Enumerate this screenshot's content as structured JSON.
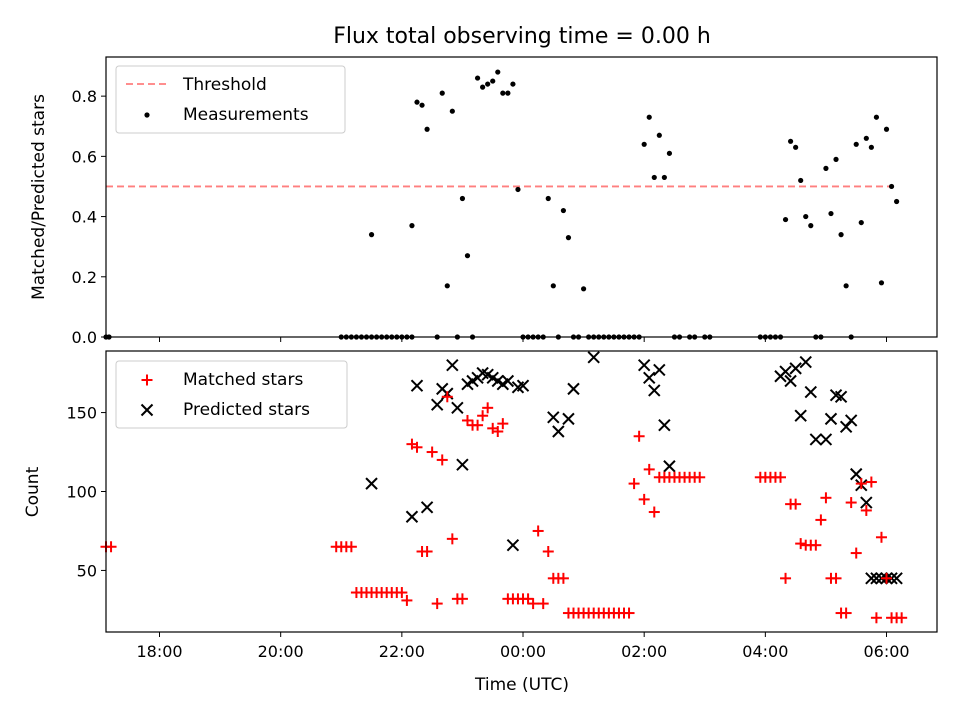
{
  "title": "Flux total observing time = 0.00 h",
  "xlabel": "Time (UTC)",
  "x_tick_labels": [
    "18:00",
    "20:00",
    "22:00",
    "00:00",
    "02:00",
    "04:00",
    "06:00"
  ],
  "colors": {
    "threshold": "#ff7f7f",
    "measurements": "#000000",
    "matched": "#ff0000",
    "predicted": "#000000"
  },
  "chart_data": [
    {
      "type": "scatter",
      "ylabel": "Matched/Predicted stars",
      "ylim": [
        0,
        0.93
      ],
      "xlim": [
        "17:07",
        "06:50"
      ],
      "yticks": [
        0.0,
        0.2,
        0.4,
        0.6,
        0.8
      ],
      "ytick_labels": [
        "0.0",
        "0.2",
        "0.4",
        "0.6",
        "0.8"
      ],
      "legend": {
        "position": "top-left",
        "entries": [
          "Threshold",
          "Measurements"
        ]
      },
      "threshold": {
        "name": "Threshold",
        "value": 0.5,
        "x_range": [
          "17:07",
          "06:10"
        ]
      },
      "series": [
        {
          "name": "Measurements",
          "x": [
            "17:07",
            "17:10",
            "21:00",
            "21:05",
            "21:10",
            "21:15",
            "21:20",
            "21:25",
            "21:30",
            "21:35",
            "21:40",
            "21:45",
            "21:50",
            "21:55",
            "22:00",
            "22:05",
            "22:10",
            "21:30",
            "22:10",
            "22:15",
            "22:20",
            "22:25",
            "22:35",
            "22:40",
            "22:45",
            "22:50",
            "22:55",
            "23:00",
            "23:05",
            "23:10",
            "23:15",
            "23:20",
            "23:25",
            "23:30",
            "23:35",
            "23:40",
            "23:45",
            "23:50",
            "23:55",
            "00:00",
            "00:05",
            "00:10",
            "00:15",
            "00:20",
            "00:25",
            "00:30",
            "00:35",
            "00:40",
            "00:45",
            "00:50",
            "00:55",
            "01:00",
            "01:05",
            "01:10",
            "01:15",
            "01:20",
            "01:25",
            "01:30",
            "01:35",
            "01:40",
            "01:45",
            "01:50",
            "01:55",
            "02:00",
            "02:05",
            "02:10",
            "02:15",
            "02:20",
            "02:25",
            "02:30",
            "02:35",
            "02:45",
            "02:50",
            "03:00",
            "03:05",
            "03:55",
            "04:00",
            "04:05",
            "04:10",
            "04:15",
            "04:20",
            "04:25",
            "04:30",
            "04:35",
            "04:40",
            "04:45",
            "04:50",
            "04:55",
            "05:00",
            "05:05",
            "05:10",
            "05:15",
            "05:20",
            "05:25",
            "05:30",
            "05:35",
            "05:40",
            "05:45",
            "05:50",
            "05:55",
            "06:00",
            "06:05",
            "06:10"
          ],
          "y": [
            0.0,
            0.0,
            0.0,
            0.0,
            0.0,
            0.0,
            0.0,
            0.0,
            0.0,
            0.0,
            0.0,
            0.0,
            0.0,
            0.0,
            0.0,
            0.0,
            0.37,
            0.34,
            0.0,
            0.78,
            0.77,
            0.69,
            0.0,
            0.81,
            0.17,
            0.75,
            0.0,
            0.46,
            0.27,
            0.0,
            0.86,
            0.83,
            0.84,
            0.85,
            0.88,
            0.81,
            0.81,
            0.84,
            0.49,
            0.0,
            0.0,
            0.0,
            0.0,
            0.0,
            0.46,
            0.17,
            0.0,
            0.42,
            0.33,
            0.0,
            0.0,
            0.16,
            0.0,
            0.0,
            0.0,
            0.0,
            0.0,
            0.0,
            0.0,
            0.0,
            0.0,
            0.0,
            0.0,
            0.64,
            0.73,
            0.53,
            0.67,
            0.53,
            0.61,
            0.0,
            0.0,
            0.0,
            0.0,
            0.0,
            0.0,
            0.0,
            0.0,
            0.0,
            0.0,
            0.0,
            0.39,
            0.65,
            0.63,
            0.52,
            0.4,
            0.37,
            0.0,
            0.0,
            0.56,
            0.41,
            0.59,
            0.34,
            0.17,
            0.0,
            0.64,
            0.38,
            0.66,
            0.63,
            0.73,
            0.18,
            0.69,
            0.5,
            0.45
          ]
        }
      ]
    },
    {
      "type": "scatter",
      "ylabel": "Count",
      "ylim": [
        11,
        189
      ],
      "xlim": [
        "17:07",
        "06:50"
      ],
      "yticks": [
        50,
        100,
        150
      ],
      "ytick_labels": [
        "50",
        "100",
        "150"
      ],
      "legend": {
        "position": "top-left",
        "entries": [
          "Matched stars",
          "Predicted stars"
        ]
      },
      "series": [
        {
          "name": "Matched stars",
          "marker": "plus",
          "x": [
            "17:07",
            "17:12",
            "20:55",
            "21:00",
            "21:05",
            "21:10",
            "21:15",
            "21:20",
            "21:25",
            "21:30",
            "21:35",
            "21:40",
            "21:45",
            "21:50",
            "21:55",
            "22:00",
            "22:05",
            "22:10",
            "22:15",
            "22:20",
            "22:25",
            "22:30",
            "22:35",
            "22:40",
            "22:45",
            "22:50",
            "22:55",
            "23:00",
            "23:05",
            "23:10",
            "23:15",
            "23:20",
            "23:25",
            "23:30",
            "23:35",
            "23:40",
            "23:45",
            "23:50",
            "23:55",
            "00:00",
            "00:05",
            "00:10",
            "00:15",
            "00:20",
            "00:25",
            "00:30",
            "00:35",
            "00:40",
            "00:45",
            "00:50",
            "00:55",
            "01:00",
            "01:05",
            "01:10",
            "01:15",
            "01:20",
            "01:25",
            "01:30",
            "01:35",
            "01:40",
            "01:45",
            "01:50",
            "01:55",
            "02:00",
            "02:05",
            "02:10",
            "02:15",
            "02:20",
            "02:25",
            "02:30",
            "02:35",
            "02:40",
            "02:45",
            "02:50",
            "02:55",
            "03:55",
            "04:00",
            "04:05",
            "04:10",
            "04:15",
            "04:20",
            "04:25",
            "04:30",
            "04:35",
            "04:40",
            "04:45",
            "04:50",
            "04:55",
            "05:00",
            "05:05",
            "05:10",
            "05:15",
            "05:20",
            "05:25",
            "05:30",
            "05:35",
            "05:40",
            "05:45",
            "05:50",
            "05:55",
            "06:00",
            "06:05",
            "06:10",
            "06:15"
          ],
          "y": [
            65,
            65,
            65,
            65,
            65,
            65,
            36,
            36,
            36,
            36,
            36,
            36,
            36,
            36,
            36,
            36,
            31,
            130,
            128,
            62,
            62,
            125,
            29,
            120,
            160,
            70,
            32,
            32,
            145,
            142,
            142,
            148,
            153,
            140,
            138,
            143,
            32,
            32,
            32,
            32,
            32,
            29,
            75,
            29,
            62,
            45,
            45,
            45,
            23,
            23,
            23,
            23,
            23,
            23,
            23,
            23,
            23,
            23,
            23,
            23,
            23,
            105,
            135,
            95,
            114,
            87,
            109,
            109,
            109,
            109,
            109,
            109,
            109,
            109,
            109,
            109,
            109,
            109,
            109,
            109,
            45,
            92,
            92,
            67,
            66,
            66,
            66,
            82,
            96,
            45,
            45,
            23,
            23,
            93,
            61,
            105,
            88,
            106,
            20,
            71,
            45,
            20,
            20,
            20
          ]
        },
        {
          "name": "Predicted stars",
          "marker": "x",
          "x": [
            "21:30",
            "22:10",
            "22:15",
            "22:25",
            "22:35",
            "22:40",
            "22:45",
            "22:50",
            "22:55",
            "23:00",
            "23:05",
            "23:10",
            "23:15",
            "23:20",
            "23:25",
            "23:30",
            "23:35",
            "23:40",
            "23:45",
            "23:50",
            "23:55",
            "00:00",
            "00:30",
            "00:35",
            "00:45",
            "00:50",
            "01:10",
            "02:00",
            "02:05",
            "02:10",
            "02:15",
            "02:20",
            "02:25",
            "04:15",
            "04:20",
            "04:25",
            "04:30",
            "04:35",
            "04:40",
            "04:45",
            "04:50",
            "05:00",
            "05:05",
            "05:10",
            "05:15",
            "05:20",
            "05:25",
            "05:30",
            "05:35",
            "05:40",
            "05:45",
            "05:50",
            "05:55",
            "06:00",
            "06:05",
            "06:10"
          ],
          "y": [
            105,
            84,
            167,
            90,
            155,
            165,
            162,
            180,
            153,
            117,
            168,
            170,
            172,
            175,
            174,
            172,
            170,
            168,
            170,
            66,
            166,
            167,
            147,
            138,
            146,
            165,
            185,
            180,
            172,
            164,
            177,
            142,
            116,
            173,
            176,
            170,
            178,
            148,
            182,
            163,
            133,
            133,
            146,
            161,
            160,
            141,
            145,
            111,
            104,
            93,
            45,
            45,
            45,
            45,
            45,
            45
          ]
        }
      ]
    }
  ]
}
